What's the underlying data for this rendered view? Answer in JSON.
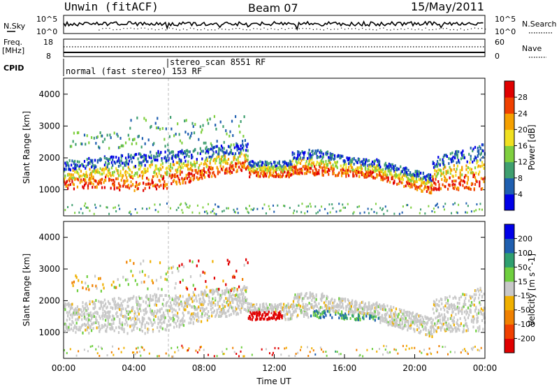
{
  "header": {
    "radar": "Unwin (fitACF)",
    "beam": "Beam 07",
    "date": "15/May/2011"
  },
  "strips": {
    "nsky_label": "N.Sky",
    "nsky_ticks": [
      "10^5",
      "10^0"
    ],
    "nsearch_label": "N.Search",
    "freq_label": "Freq.",
    "freq_unit": "[MHz]",
    "freq_ticks": [
      "18",
      "8"
    ],
    "nave_label": "Nave",
    "nave_ticks": [
      "60",
      "0"
    ],
    "cpid_label": "CPID",
    "cpid_segments": [
      "normal (fast stereo) 153 RF",
      "stereo_scan 8551 RF"
    ]
  },
  "chart_data": [
    {
      "type": "heatmap",
      "name": "Power",
      "ylabel": "Slant Range [km]",
      "ylim": [
        180,
        4500
      ],
      "yticks": [
        "1000",
        "2000",
        "3000",
        "4000"
      ],
      "colorbar": {
        "label": "Power [dB]",
        "ticks": [
          "4",
          "8",
          "12",
          "16",
          "20",
          "24",
          "28"
        ],
        "colors": [
          "#0000e8",
          "#1f5fb0",
          "#3f9f6f",
          "#7fcf3f",
          "#f0e020",
          "#f5a000",
          "#f04000",
          "#e00000"
        ]
      }
    },
    {
      "type": "heatmap",
      "name": "Velocity",
      "ylabel": "Slant Range [km]",
      "ylim": [
        180,
        4500
      ],
      "yticks": [
        "1000",
        "2000",
        "3000",
        "4000"
      ],
      "colorbar": {
        "label": "Velocity [m s^-1]",
        "ticks": [
          "-200",
          "-100",
          "-50",
          "-15",
          "15",
          "50",
          "100",
          "200"
        ],
        "colors": [
          "#e00000",
          "#f04000",
          "#f08000",
          "#f0b000",
          "#c8c8c8",
          "#6fcf3f",
          "#2f9f6f",
          "#1f5fb0",
          "#0000e8"
        ]
      }
    }
  ],
  "xaxis": {
    "label": "Time UT",
    "ticks": [
      "00:00",
      "04:00",
      "08:00",
      "12:00",
      "16:00",
      "20:00",
      "00:00"
    ]
  }
}
